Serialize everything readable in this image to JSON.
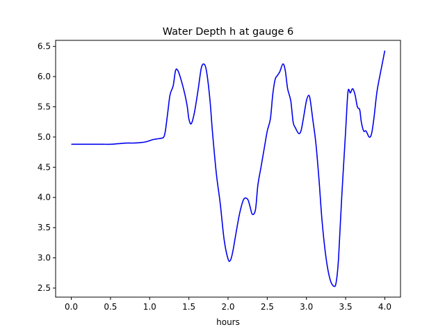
{
  "chart_data": {
    "type": "line",
    "title": "Water Depth h at gauge 6",
    "xlabel": "hours",
    "ylabel": "",
    "xlim": [
      -0.2,
      4.2
    ],
    "ylim": [
      2.35,
      6.6
    ],
    "xticks": [
      0.0,
      0.5,
      1.0,
      1.5,
      2.0,
      2.5,
      3.0,
      3.5,
      4.0
    ],
    "xtick_labels": [
      "0.0",
      "0.5",
      "1.0",
      "1.5",
      "2.0",
      "2.5",
      "3.0",
      "3.5",
      "4.0"
    ],
    "yticks": [
      2.5,
      3.0,
      3.5,
      4.0,
      4.5,
      5.0,
      5.5,
      6.0,
      6.5
    ],
    "ytick_labels": [
      "2.5",
      "3.0",
      "3.5",
      "4.0",
      "4.5",
      "5.0",
      "5.5",
      "6.0",
      "6.5"
    ],
    "grid": false,
    "legend": "none",
    "series": [
      {
        "color": "#0000ee",
        "x": [
          0.0,
          0.2,
          0.4,
          0.5,
          0.6,
          0.7,
          0.8,
          0.9,
          0.95,
          1.0,
          1.05,
          1.1,
          1.15,
          1.18,
          1.2,
          1.23,
          1.26,
          1.3,
          1.33,
          1.36,
          1.4,
          1.45,
          1.48,
          1.5,
          1.53,
          1.57,
          1.62,
          1.66,
          1.7,
          1.73,
          1.77,
          1.8,
          1.85,
          1.9,
          1.95,
          2.0,
          2.03,
          2.06,
          2.1,
          2.15,
          2.2,
          2.25,
          2.28,
          2.31,
          2.35,
          2.38,
          2.42,
          2.46,
          2.5,
          2.54,
          2.57,
          2.6,
          2.63,
          2.66,
          2.7,
          2.73,
          2.76,
          2.8,
          2.83,
          2.86,
          2.9,
          2.93,
          2.96,
          3.0,
          3.03,
          3.05,
          3.08,
          3.12,
          3.16,
          3.2,
          3.25,
          3.3,
          3.35,
          3.38,
          3.41,
          3.45,
          3.5,
          3.53,
          3.56,
          3.59,
          3.62,
          3.65,
          3.68,
          3.7,
          3.73,
          3.76,
          3.8,
          3.83,
          3.86,
          3.9,
          3.95,
          4.0
        ],
        "y": [
          4.88,
          4.88,
          4.88,
          4.88,
          4.89,
          4.9,
          4.9,
          4.91,
          4.92,
          4.94,
          4.96,
          4.97,
          4.98,
          5.0,
          5.1,
          5.4,
          5.7,
          5.85,
          6.1,
          6.1,
          5.95,
          5.7,
          5.5,
          5.3,
          5.22,
          5.4,
          5.8,
          6.15,
          6.2,
          6.05,
          5.6,
          5.1,
          4.4,
          3.9,
          3.3,
          2.98,
          2.96,
          3.1,
          3.4,
          3.75,
          3.97,
          3.97,
          3.85,
          3.72,
          3.8,
          4.2,
          4.5,
          4.8,
          5.1,
          5.3,
          5.7,
          5.95,
          6.02,
          6.08,
          6.21,
          6.1,
          5.8,
          5.6,
          5.25,
          5.15,
          5.06,
          5.1,
          5.3,
          5.6,
          5.69,
          5.6,
          5.3,
          4.9,
          4.3,
          3.6,
          3.0,
          2.65,
          2.53,
          2.6,
          3.0,
          4.0,
          5.1,
          5.75,
          5.73,
          5.8,
          5.7,
          5.5,
          5.45,
          5.25,
          5.1,
          5.1,
          5.0,
          5.05,
          5.3,
          5.75,
          6.1,
          6.43
        ]
      }
    ]
  }
}
